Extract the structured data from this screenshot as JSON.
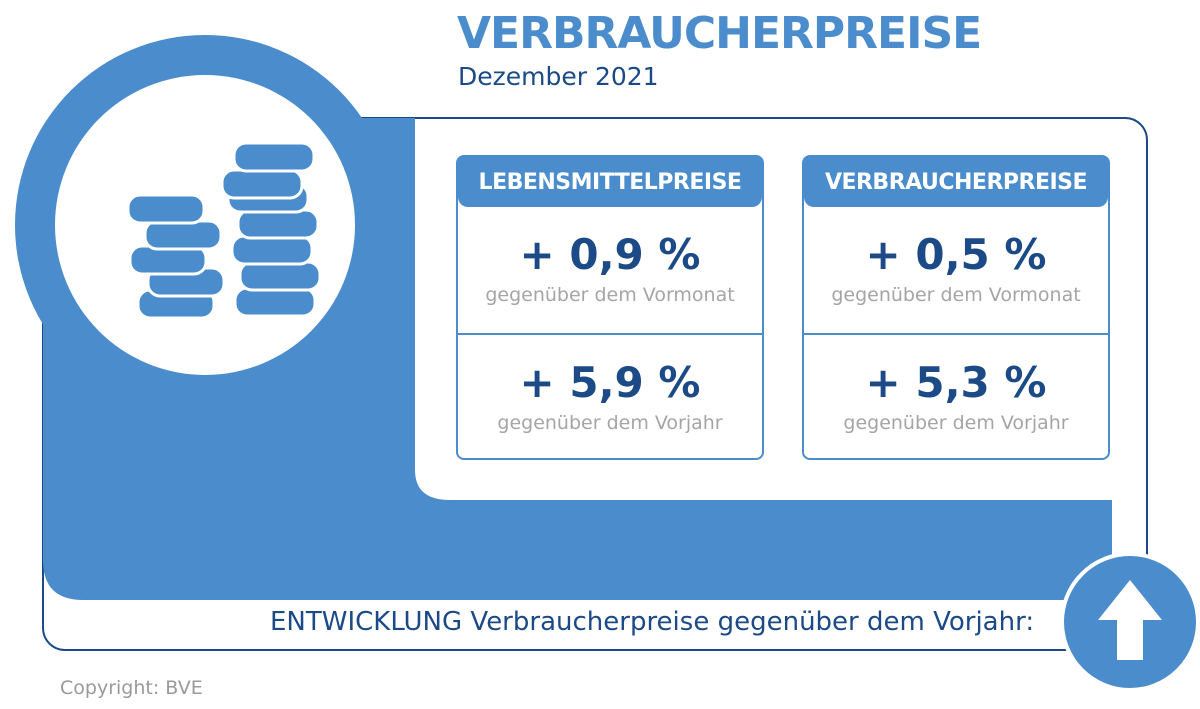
{
  "header": {
    "title": "VERBRAUCHERPREISE",
    "subtitle": "Dezember 2021"
  },
  "cards": [
    {
      "heading": "LEBENSMITTELPREISE",
      "rows": [
        {
          "value": "+ 0,9 %",
          "label": "gegenüber dem Vormonat"
        },
        {
          "value": "+ 5,9 %",
          "label": "gegenüber dem Vorjahr"
        }
      ]
    },
    {
      "heading": "VERBRAUCHERPREISE",
      "rows": [
        {
          "value": "+ 0,5 %",
          "label": "gegenüber dem Vormonat"
        },
        {
          "value": "+ 5,3 %",
          "label": "gegenüber dem Vorjahr"
        }
      ]
    }
  ],
  "footer": {
    "trend_text": "ENTWICKLUNG Verbraucherpreise gegenüber dem Vorjahr:",
    "trend_icon": "arrow-up-icon"
  },
  "copyright": "Copyright: BVE",
  "colors": {
    "accent": "#4a8ccc",
    "dark_blue": "#1b4a86",
    "gray_text": "#a5a5a5"
  },
  "decor": {
    "coins_icon": "coins-icon"
  }
}
